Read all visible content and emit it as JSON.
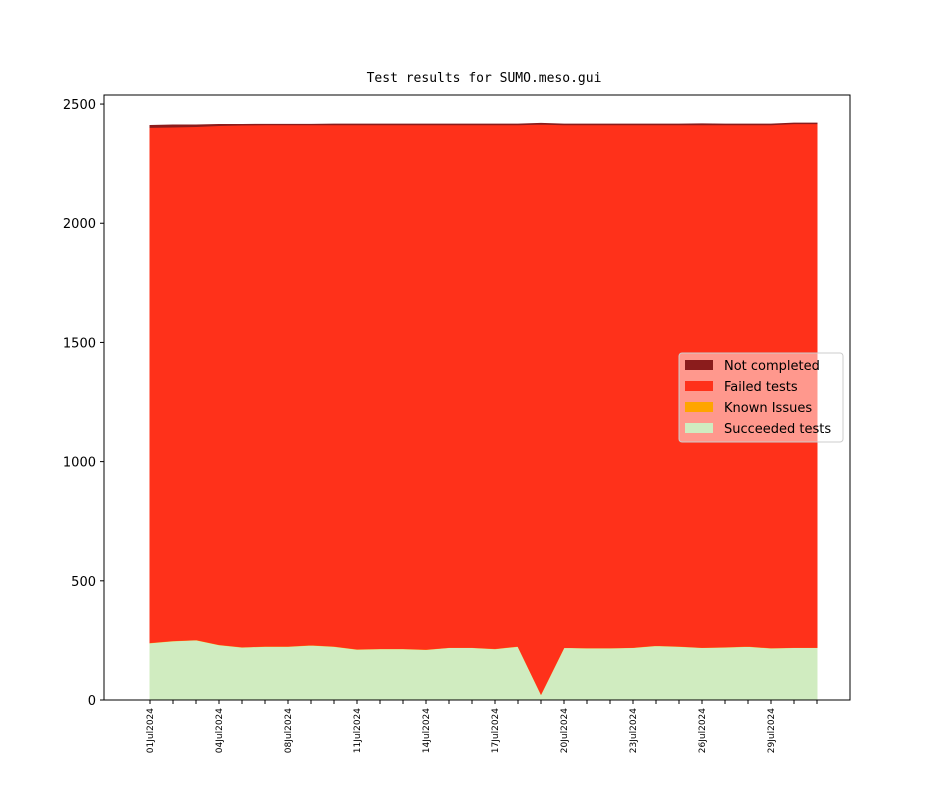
{
  "chart_data": {
    "type": "stacked_area",
    "title": "Test results for SUMO.meso.gui",
    "categories": [
      "01Jul2024",
      null,
      null,
      "04Jul2024",
      null,
      null,
      "08Jul2024",
      null,
      null,
      "11Jul2024",
      null,
      null,
      "14Jul2024",
      null,
      null,
      "17Jul2024",
      null,
      null,
      "20Jul2024",
      null,
      null,
      "23Jul2024",
      null,
      null,
      "26Jul2024",
      null,
      null,
      "29Jul2024",
      null,
      null
    ],
    "series": [
      {
        "name": "Succeeded tests",
        "color": "#d0ecc0",
        "values": [
          240,
          248,
          252,
          232,
          222,
          225,
          225,
          230,
          225,
          213,
          215,
          215,
          212,
          220,
          220,
          215,
          225,
          25,
          220,
          218,
          218,
          220,
          228,
          225,
          220,
          222,
          225,
          218,
          220,
          220
        ]
      },
      {
        "name": "Known Issues",
        "color": "#ffa500",
        "values": [
          1,
          1,
          1,
          1,
          1,
          1,
          1,
          1,
          1,
          1,
          1,
          1,
          1,
          1,
          1,
          1,
          1,
          1,
          1,
          1,
          1,
          1,
          1,
          1,
          1,
          1,
          1,
          1,
          1,
          1
        ]
      },
      {
        "name": "Failed tests",
        "color": "#ff311a",
        "values": [
          2161,
          2155,
          2153,
          2177,
          2189,
          2187,
          2187,
          2182,
          2187,
          2199,
          2197,
          2197,
          2200,
          2192,
          2192,
          2197,
          2187,
          2390,
          2192,
          2194,
          2194,
          2192,
          2184,
          2187,
          2192,
          2190,
          2187,
          2194,
          2197,
          2197
        ]
      },
      {
        "name": "Not completed",
        "color": "#8b1c1c",
        "values": [
          8,
          8,
          6,
          4,
          2,
          2,
          2,
          2,
          3,
          3,
          3,
          3,
          3,
          3,
          3,
          3,
          3,
          3,
          3,
          3,
          3,
          3,
          3,
          3,
          4,
          3,
          3,
          3,
          2,
          2
        ]
      }
    ],
    "ylim": [
      0,
      2538
    ],
    "yticks": [
      0,
      500,
      1000,
      1500,
      2000,
      2500
    ],
    "grid": false,
    "legend_loc": "center right"
  }
}
